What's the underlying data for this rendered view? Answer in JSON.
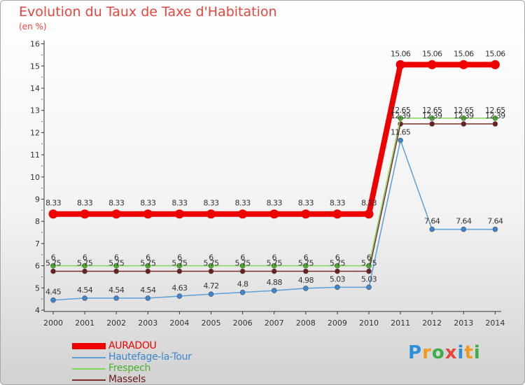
{
  "header": {
    "title": "Evolution du Taux de Taxe d'Habitation",
    "unit": "(en %)"
  },
  "brand": {
    "letters": [
      "P",
      "r",
      "o",
      "x",
      "i",
      "t",
      "i"
    ],
    "colors": [
      "#2b8fd9",
      "#f29a1e",
      "#3fae49",
      "#e8453c",
      "#2b8fd9",
      "#f29a1e",
      "#3fae49"
    ]
  },
  "chart_data": {
    "type": "line",
    "x": [
      "2000",
      "2001",
      "2002",
      "2003",
      "2004",
      "2005",
      "2006",
      "2007",
      "2008",
      "2009",
      "2010",
      "2011",
      "2012",
      "2013",
      "2014"
    ],
    "ylim": [
      4,
      16
    ],
    "yticks": [
      "4",
      "5",
      "6",
      "7",
      "8",
      "9",
      "10",
      "11",
      "12",
      "13",
      "14",
      "15",
      "16"
    ],
    "grid": false,
    "legend_position": "bottom-left",
    "series": [
      {
        "name": "Massels",
        "color": "#7b2d2d",
        "marker_color": "#6a2020",
        "values": [
          5.75,
          5.75,
          5.75,
          5.75,
          5.75,
          5.75,
          5.75,
          5.75,
          5.75,
          5.75,
          5.75,
          12.39,
          12.39,
          12.39,
          12.39
        ],
        "labels": [
          "5.75",
          "5.75",
          "5.75",
          "5.75",
          "5.75",
          "5.75",
          "5.75",
          "5.75",
          "5.75",
          "5.75",
          "5.75",
          "12.39",
          "12.39",
          "12.39",
          "12.39"
        ]
      },
      {
        "name": "Frespech",
        "color": "#7ed957",
        "marker_color": "#4caf2a",
        "values": [
          6,
          6,
          6,
          6,
          6,
          6,
          6,
          6,
          6,
          6,
          6,
          12.65,
          12.65,
          12.65,
          12.65
        ],
        "labels": [
          "6",
          "6",
          "6",
          "6",
          "6",
          "6",
          "6",
          "6",
          "6",
          "6",
          "6",
          "12.65",
          "12.65",
          "12.65",
          "12.65"
        ]
      },
      {
        "name": "Hautefage-la-Tour",
        "color": "#5c9fd8",
        "marker_color": "#3b86cc",
        "values": [
          4.45,
          4.54,
          4.54,
          4.54,
          4.63,
          4.72,
          4.8,
          4.88,
          4.98,
          5.03,
          5.03,
          11.65,
          7.64,
          7.64,
          7.64
        ],
        "labels": [
          "4.45",
          "4.54",
          "4.54",
          "4.54",
          "4.63",
          "4.72",
          "4.8",
          "4.88",
          "4.98",
          "5.03",
          "5.03",
          "11.65",
          "7.64",
          "7.64",
          "7.64"
        ]
      },
      {
        "name": "AURADOU",
        "color": "#ee0000",
        "marker_color": "#ee0000",
        "values": [
          8.33,
          8.33,
          8.33,
          8.33,
          8.33,
          8.33,
          8.33,
          8.33,
          8.33,
          8.33,
          8.33,
          15.06,
          15.06,
          15.06,
          15.06
        ],
        "labels": [
          "8.33",
          "8.33",
          "8.33",
          "8.33",
          "8.33",
          "8.33",
          "8.33",
          "8.33",
          "8.33",
          "8.33",
          "8.33",
          "15.06",
          "15.06",
          "15.06",
          "15.06"
        ]
      }
    ],
    "legend_order": [
      "AURADOU",
      "Hautefage-la-Tour",
      "Frespech",
      "Massels"
    ]
  }
}
